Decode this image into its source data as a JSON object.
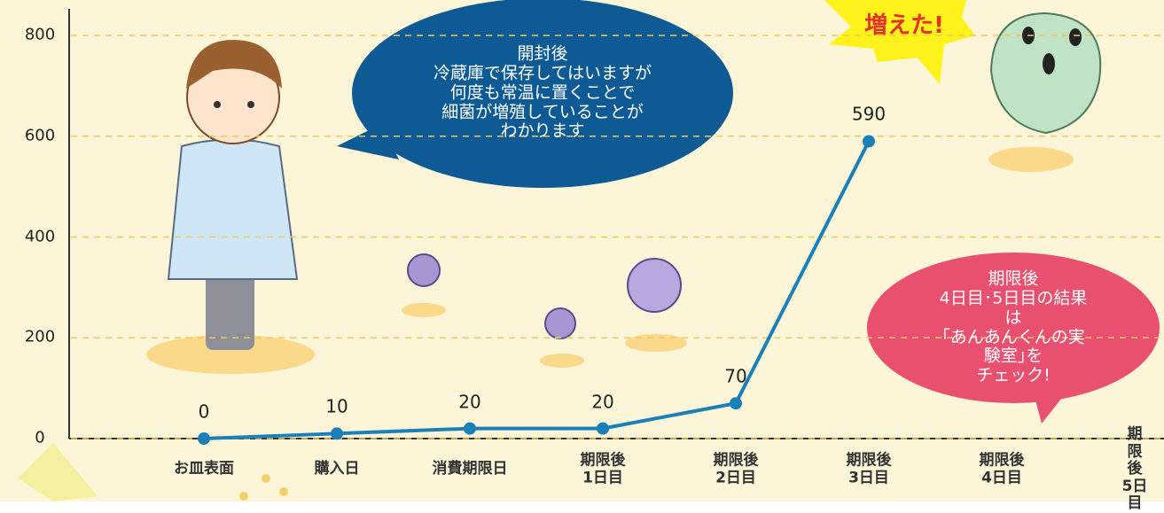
{
  "chart_data": {
    "type": "line",
    "categories": [
      "お皿表面",
      "購入日",
      "消費期限日",
      "期限後\n1日目",
      "期限後\n2日目",
      "期限後\n3日目",
      "期限後\n4日目",
      "期限後\n5日目"
    ],
    "values": [
      0,
      10,
      20,
      20,
      70,
      590,
      null,
      null
    ],
    "color": "#1b80b8",
    "ylim": [
      0,
      800
    ],
    "yticks": [
      0,
      200,
      400,
      600,
      800
    ],
    "grid": true,
    "annotations": [
      {
        "text": "開封後\n冷蔵庫で保存してはいますが\n何度も常温に置くことで\n細菌が増殖していることが\nわかります",
        "color": "#0e5a95"
      },
      {
        "text": "期限後\n4日目･5日目の結果は\n｢あんあんくんの実験室｣を\nチェック!",
        "color": "#e9506f"
      },
      {
        "text": "増えた!",
        "color": "#fff21a"
      }
    ]
  }
}
